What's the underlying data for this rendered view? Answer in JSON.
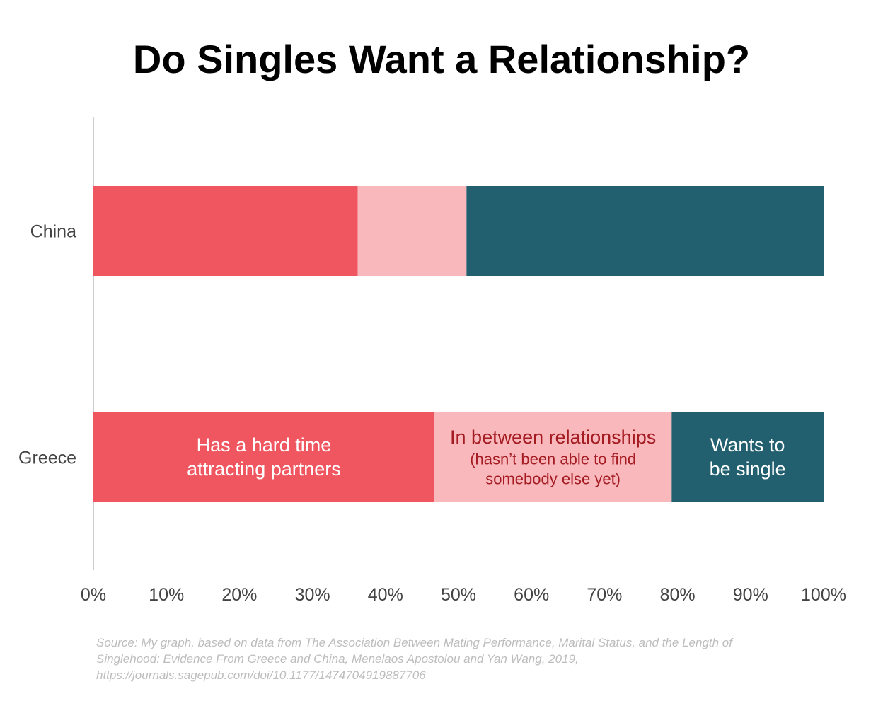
{
  "chart_data": {
    "type": "bar",
    "orientation": "horizontal",
    "stacked": true,
    "title": "Do Singles Want a Relationship?",
    "categories": [
      "China",
      "Greece"
    ],
    "xlim": [
      0,
      100
    ],
    "x_ticks": [
      "0%",
      "10%",
      "20%",
      "30%",
      "40%",
      "50%",
      "60%",
      "70%",
      "80%",
      "90%",
      "100%"
    ],
    "series": [
      {
        "name": "Has a hard time attracting partners",
        "label_lines": [
          "Has a hard time",
          "attracting partners"
        ],
        "color": "#F05660",
        "text_color": "#FFFFFF",
        "values": [
          36.2,
          46.7
        ]
      },
      {
        "name": "In between relationships (hasn't been able to find somebody else yet)",
        "label_lines": [
          "In between relationships"
        ],
        "sub_lines": [
          "(hasn’t been able to find",
          "somebody else yet)"
        ],
        "color": "#F9B8BC",
        "text_color": "#A41B22",
        "values": [
          14.9,
          32.5
        ]
      },
      {
        "name": "Wants to be single",
        "label_lines": [
          "Wants to",
          "be single"
        ],
        "color": "#22606F",
        "text_color": "#FFFFFF",
        "values": [
          48.9,
          20.8
        ]
      }
    ],
    "labels_shown_on": "Greece",
    "grid": false,
    "legend": "none",
    "source_lines": [
      "Source: My graph, based on data from The Association Between Mating Performance, Marital Status, and the Length of",
      "Singlehood: Evidence From Greece and China, Menelaos Apostolou and Yan Wang, 2019,",
      "https://journals.sagepub.com/doi/10.1177/1474704919887706"
    ]
  }
}
